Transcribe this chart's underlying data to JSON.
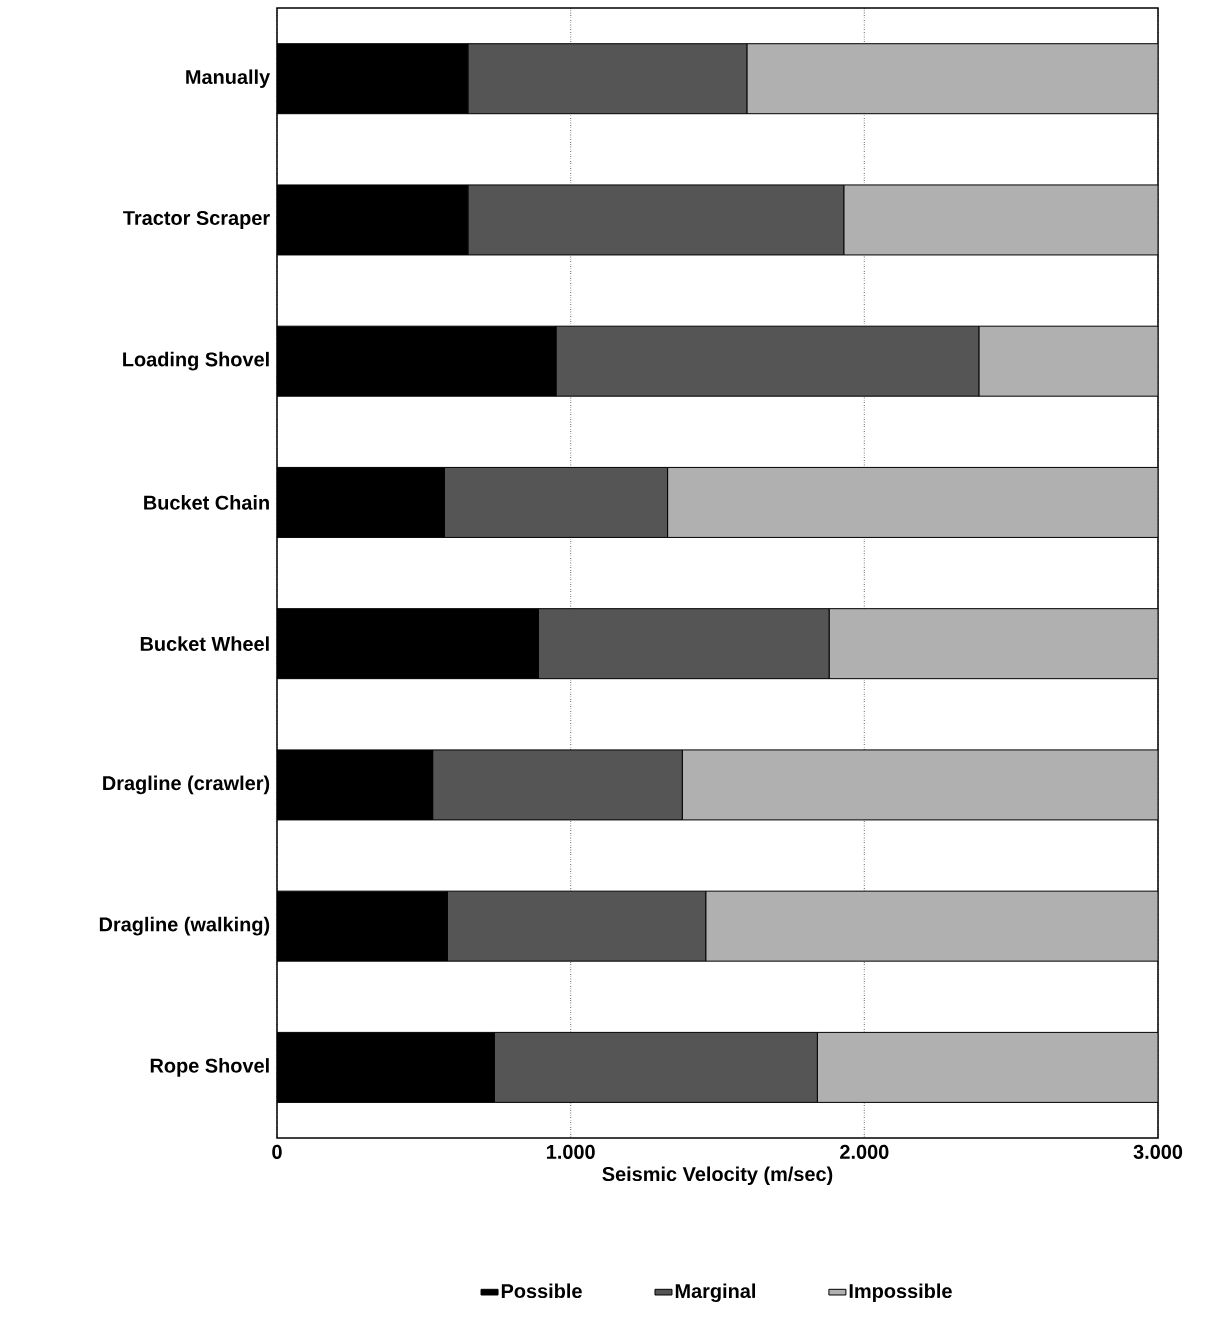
{
  "chart_data": {
    "type": "bar",
    "orientation": "horizontal",
    "stacked": true,
    "xlabel": "Seismic Velocity (m/sec)",
    "categories": [
      "Manually",
      "Tractor Scraper",
      "Loading Shovel",
      "Bucket Chain",
      "Bucket Wheel",
      "Dragline (crawler)",
      "Dragline (walking)",
      "Rope Shovel"
    ],
    "series": [
      {
        "name": "Possible",
        "color": "#000000",
        "values": [
          650,
          650,
          950,
          570,
          890,
          530,
          580,
          740
        ]
      },
      {
        "name": "Marginal",
        "color": "#555555",
        "values": [
          950,
          1280,
          1440,
          760,
          990,
          850,
          880,
          1100
        ]
      },
      {
        "name": "Impossible",
        "color": "#b0b0b0",
        "values": [
          1400,
          1070,
          610,
          1670,
          1120,
          1620,
          1540,
          1160
        ]
      }
    ],
    "xlim": [
      0,
      3000
    ],
    "xticks": [
      0,
      {
        "value": 1000,
        "label": "1.000"
      },
      {
        "value": 2000,
        "label": "2.000"
      },
      {
        "value": 3000,
        "label": "3.000"
      }
    ],
    "grid": "x",
    "legend": "bottom"
  }
}
